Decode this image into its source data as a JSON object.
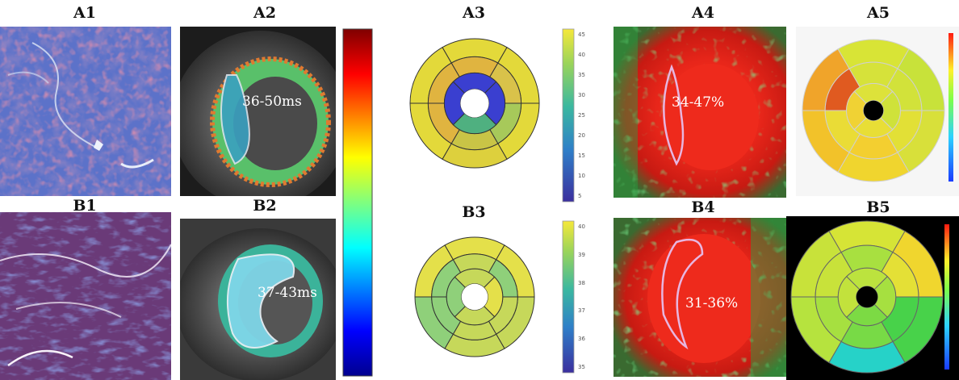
{
  "panels": {
    "A1": {
      "label": "A1"
    },
    "A2": {
      "label": "A2",
      "value": "36-50ms"
    },
    "A3": {
      "label": "A3"
    },
    "A4": {
      "label": "A4",
      "value": "34-47%"
    },
    "A5": {
      "label": "A5"
    },
    "B1": {
      "label": "B1"
    },
    "B2": {
      "label": "B2",
      "value": "37-43ms"
    },
    "B3": {
      "label": "B3"
    },
    "B4": {
      "label": "B4",
      "value": "31-36%"
    },
    "B5": {
      "label": "B5"
    }
  },
  "colorbars": {
    "A3": {
      "ticks": [
        "45",
        "40",
        "35",
        "30",
        "25",
        "20",
        "15",
        "10",
        "5"
      ]
    },
    "B3": {
      "ticks": [
        "40",
        "39",
        "38",
        "37",
        "36",
        "35"
      ]
    }
  },
  "colors": {
    "trichrome_purple": "#7a3f8c",
    "trichrome_blue": "#3d63c4",
    "map_red": "#e3231a",
    "bullseye_yellow": "#e8e035",
    "bullseye_blue": "#3a3fd0"
  }
}
